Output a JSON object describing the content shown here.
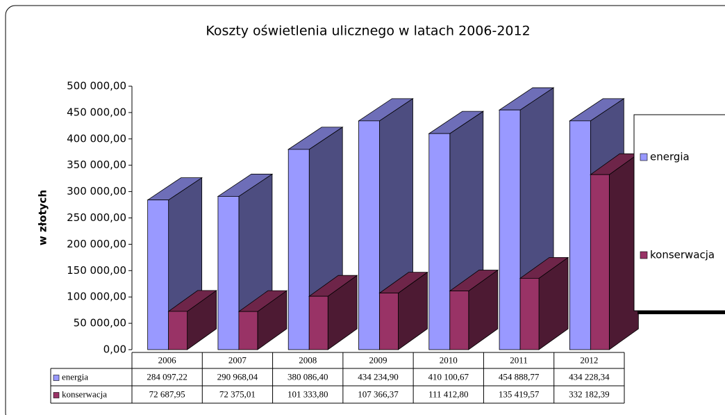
{
  "chart_data": {
    "type": "bar3d",
    "title": "Koszty oświetlenia ulicznego w latach 2006-2012",
    "y_label": "w złotych",
    "categories": [
      "2006",
      "2007",
      "2008",
      "2009",
      "2010",
      "2011",
      "2012"
    ],
    "series": [
      {
        "name": "energia",
        "color": "#9999ff",
        "values": [
          284097.22,
          290968.04,
          380086.4,
          434234.9,
          410100.67,
          454888.77,
          434228.34
        ],
        "value_labels": [
          "284 097,22",
          "290 968,04",
          "380 086,40",
          "434 234,90",
          "410 100,67",
          "454 888,77",
          "434 228,34"
        ]
      },
      {
        "name": "konserwacja",
        "color": "#993366",
        "values": [
          72687.95,
          72375.01,
          101333.8,
          107366.37,
          111412.8,
          135419.57,
          332182.39
        ],
        "value_labels": [
          "72 687,95",
          "72 375,01",
          "101 333,80",
          "107 366,37",
          "111 412,80",
          "135 419,57",
          "332 182,39"
        ]
      }
    ],
    "ylim": [
      0,
      500000
    ],
    "yticks": [
      {
        "value": 0,
        "label": "0,00"
      },
      {
        "value": 50000,
        "label": "50 000,00"
      },
      {
        "value": 100000,
        "label": "100 000,00"
      },
      {
        "value": 150000,
        "label": "150 000,00"
      },
      {
        "value": 200000,
        "label": "200 000,00"
      },
      {
        "value": 250000,
        "label": "250 000,00"
      },
      {
        "value": 300000,
        "label": "300 000,00"
      },
      {
        "value": 350000,
        "label": "350 000,00"
      },
      {
        "value": 400000,
        "label": "400 000,00"
      },
      {
        "value": 450000,
        "label": "450 000,00"
      },
      {
        "value": 500000,
        "label": "500 000,00"
      }
    ],
    "grid": false,
    "legend": "right",
    "data_table": true
  }
}
